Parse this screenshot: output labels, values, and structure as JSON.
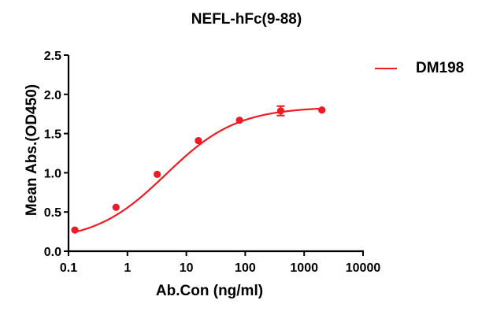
{
  "chart_data": {
    "type": "scatter",
    "title": "NEFL-hFc(9-88)",
    "xlabel": "Ab.Con (ng/ml)",
    "ylabel": "Mean Abs.(OD450)",
    "xscale": "log",
    "xlim": [
      0.1,
      10000
    ],
    "ylim": [
      0,
      2.5
    ],
    "x_ticks": [
      "0.1",
      "1",
      "10",
      "100",
      "1000",
      "10000"
    ],
    "y_ticks": [
      "0.0",
      "0.5",
      "1.0",
      "1.5",
      "2.0",
      "2.5"
    ],
    "grid": false,
    "legend_position": "right",
    "series": [
      {
        "name": "DM198",
        "color": "#ed1c24",
        "fit": "4PL sigmoid curve",
        "x": [
          0.128,
          0.64,
          3.2,
          16,
          80,
          400,
          2000
        ],
        "y": [
          0.27,
          0.56,
          0.98,
          1.41,
          1.67,
          1.79,
          1.8
        ],
        "error": [
          0.01,
          0.01,
          0.01,
          0.01,
          0.01,
          0.06,
          0.01
        ]
      }
    ]
  }
}
